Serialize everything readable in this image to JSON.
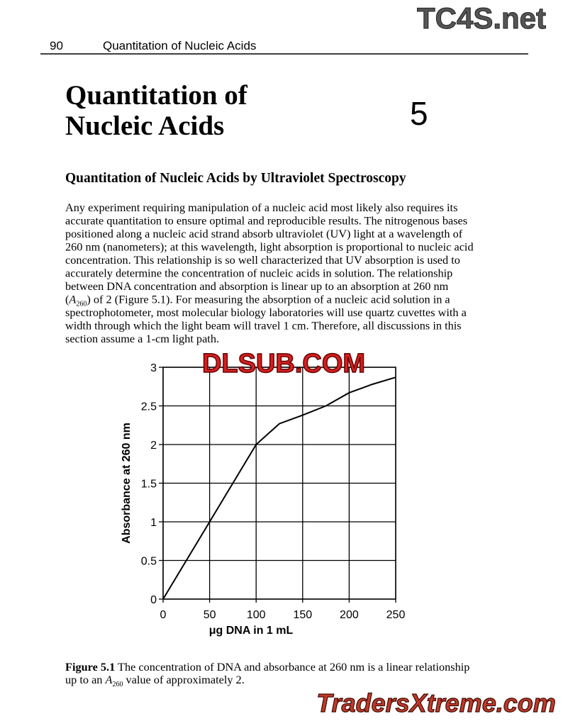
{
  "header": {
    "page_number": "90",
    "running_title": "Quantitation of Nucleic Acids"
  },
  "chapter": {
    "title_lines": [
      "Quantitation of",
      "Nucleic Acids"
    ],
    "number": "5"
  },
  "section_heading": "Quantitation of Nucleic Acids by Ultraviolet Spectroscopy",
  "body": {
    "lines_before": [
      "Any experiment requiring manipulation of a nucleic acid most likely also requires its",
      "accurate quantitation to ensure optimal and reproducible results. The nitrogenous bases",
      "positioned along a nucleic acid strand absorb ultraviolet (UV) light at a wavelength of",
      "260 nm (nanometers); at this wavelength, light absorption is proportional to nucleic acid",
      "concentration. This relationship is so well characterized that UV absorption is used to",
      "accurately determine the concentration of nucleic acids in solution. The relationship",
      "between DNA concentration and absorption is linear up to an absorption at 260 nm"
    ],
    "sub_line": {
      "open": "(",
      "symbol": "A",
      "subscript": "260",
      "rest": ") of 2 (Figure 5.1). For measuring the absorption of a nucleic acid solution in a"
    },
    "lines_after": [
      "spectrophotometer, most molecular biology laboratories will use quartz cuvettes with a",
      "width through which the light beam will travel 1 cm. Therefore, all discussions in this",
      "section assume a 1-cm light path."
    ]
  },
  "chart_data": {
    "type": "line",
    "x_label": "μg DNA in 1 mL",
    "y_label": "Absorbance at 260 nm",
    "x": [
      0,
      50,
      100,
      125,
      150,
      175,
      200,
      225,
      250
    ],
    "values": [
      0,
      1,
      2,
      2.27,
      2.38,
      2.5,
      2.67,
      2.78,
      2.87
    ],
    "color": "#000000",
    "xlim": [
      0,
      250
    ],
    "xticks": [
      0,
      50,
      100,
      150,
      200,
      250
    ],
    "ylim": [
      0,
      3
    ],
    "yticks": [
      0,
      0.5,
      1,
      1.5,
      2,
      2.5,
      3
    ],
    "grid": true
  },
  "caption": {
    "label": "Figure 5.1",
    "line1": "The concentration of DNA and absorbance at 260 nm is a linear relationship",
    "line2_start": "up to an",
    "symbol": "A",
    "subscript": "260",
    "line2_end": "value of approximately 2."
  },
  "watermarks": {
    "top": "TC4S.net",
    "middle": "DLSUB.COM",
    "bottom": "TradersXtreme.com"
  }
}
